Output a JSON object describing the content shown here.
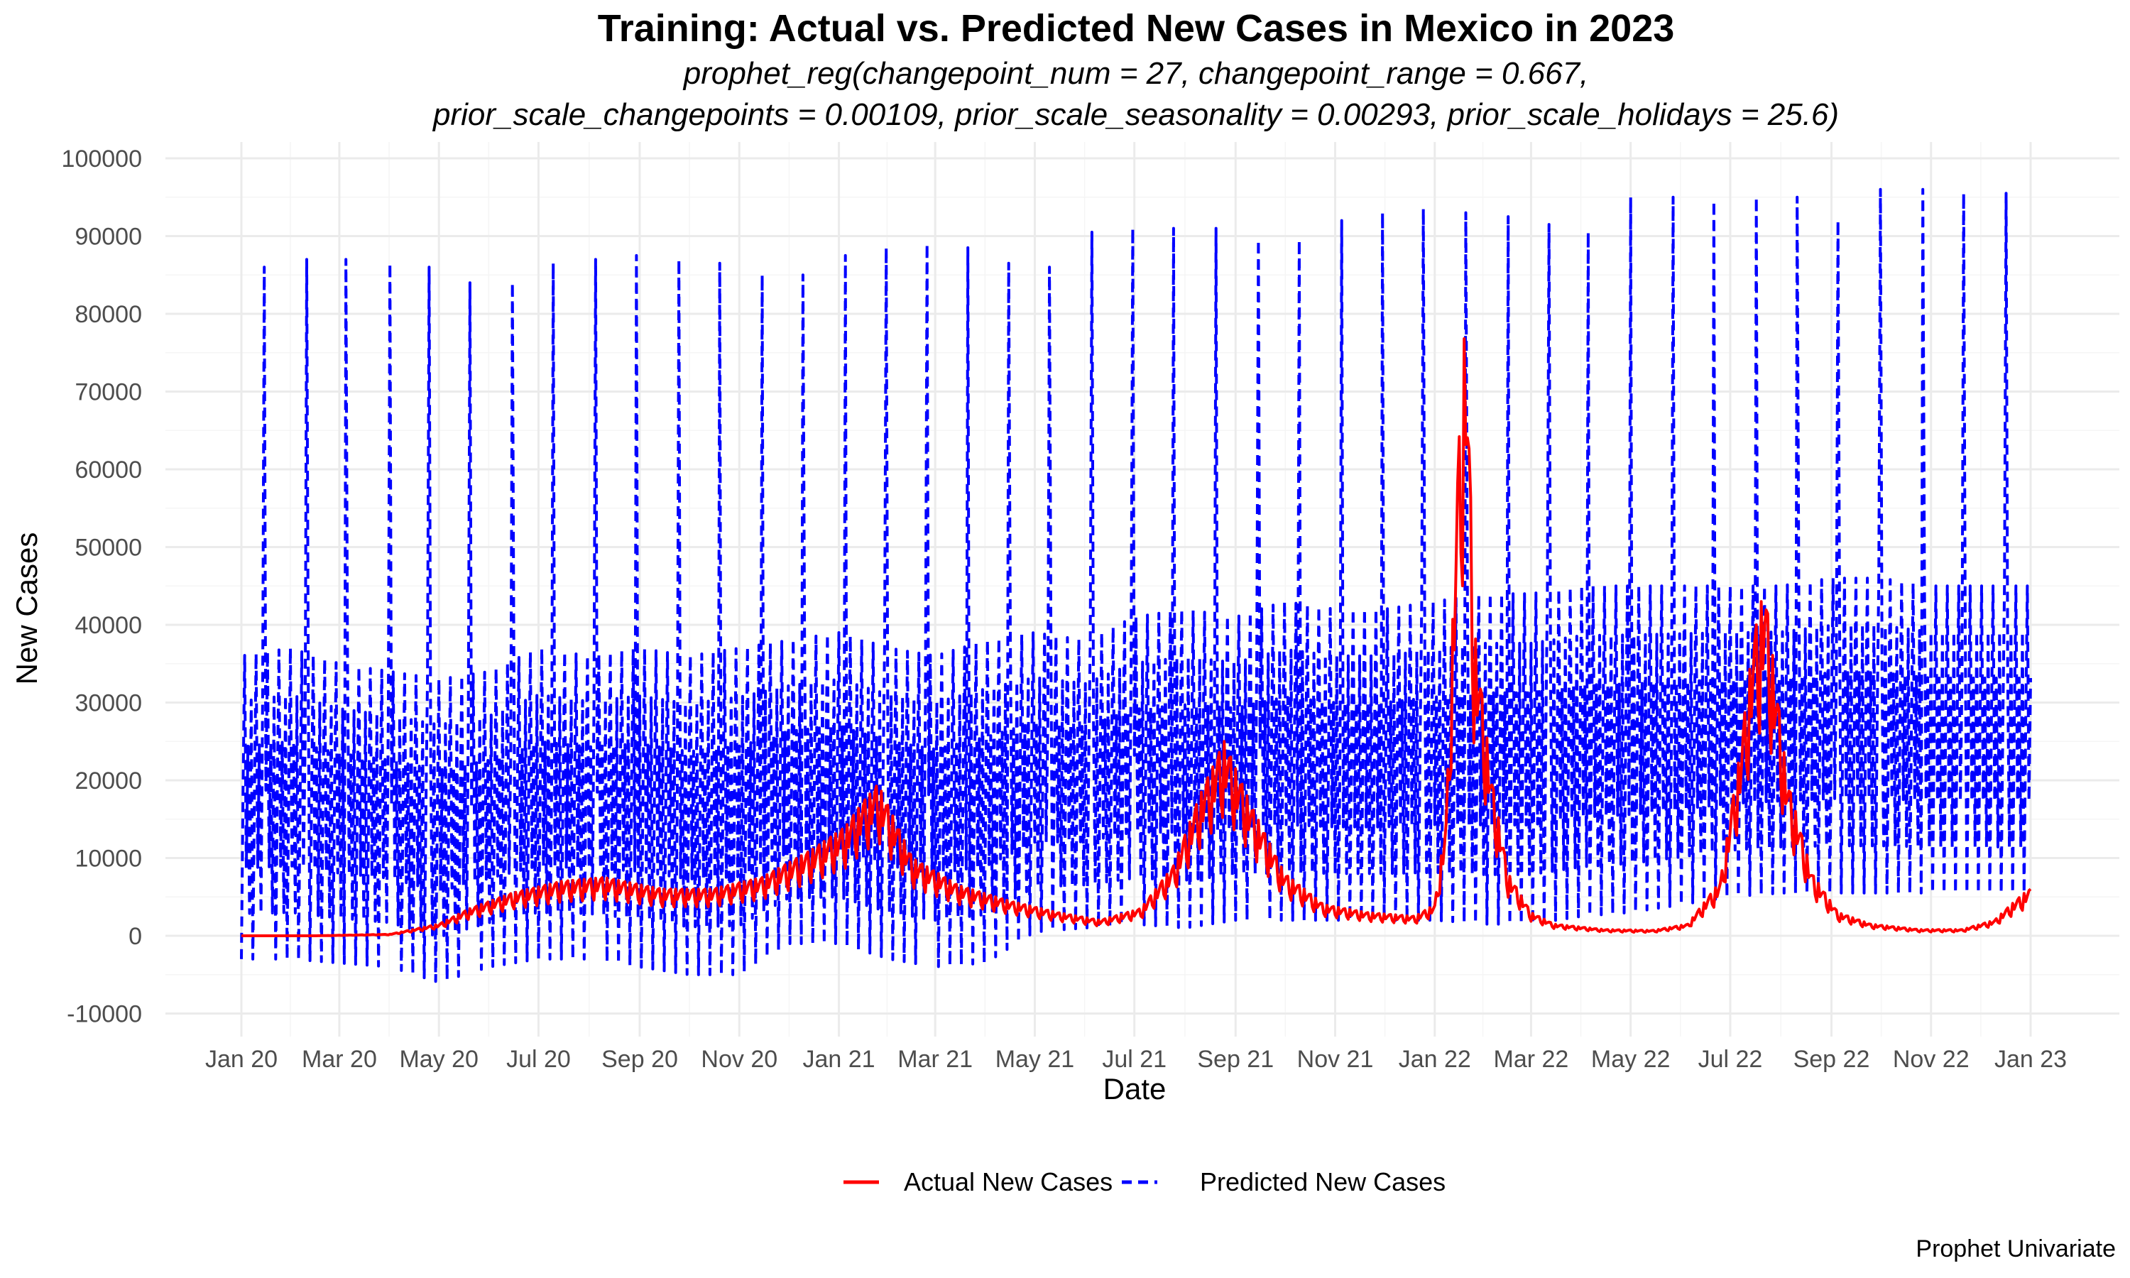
{
  "chart_data": {
    "type": "line",
    "title": "Training: Actual vs. Predicted New Cases in Mexico in 2023",
    "subtitle_lines": [
      "prophet_reg(changepoint_num = 27, changepoint_range = 0.667,",
      "prior_scale_changepoints = 0.00109, prior_scale_seasonality = 0.00293, prior_scale_holidays = 25.6)"
    ],
    "xlabel": "Date",
    "ylabel": "New Cases",
    "caption": "Prophet Univariate",
    "xlim": [
      "2020-01-01",
      "2023-01-01"
    ],
    "ylim": [
      -10000,
      100000
    ],
    "x_ticks": [
      "2020-01-01",
      "2020-03-01",
      "2020-05-01",
      "2020-07-01",
      "2020-09-01",
      "2020-11-01",
      "2021-01-01",
      "2021-03-01",
      "2021-05-01",
      "2021-07-01",
      "2021-09-01",
      "2021-11-01",
      "2022-01-01",
      "2022-03-01",
      "2022-05-01",
      "2022-07-01",
      "2022-09-01",
      "2022-11-01",
      "2023-01-01"
    ],
    "x_tick_labels": [
      "Jan 20",
      "Mar 20",
      "May 20",
      "Jul 20",
      "Sep 20",
      "Nov 20",
      "Jan 21",
      "Mar 21",
      "May 21",
      "Jul 21",
      "Sep 21",
      "Nov 21",
      "Jan 22",
      "Mar 22",
      "May 22",
      "Jul 22",
      "Sep 22",
      "Nov 22",
      "Jan 23"
    ],
    "y_ticks": [
      -10000,
      0,
      10000,
      20000,
      30000,
      40000,
      50000,
      60000,
      70000,
      80000,
      90000,
      100000
    ],
    "y_tick_labels": [
      "-10000",
      "0",
      "10000",
      "20000",
      "30000",
      "40000",
      "50000",
      "60000",
      "70000",
      "80000",
      "90000",
      "100000"
    ],
    "grid": true,
    "legend_position": "bottom",
    "series": [
      {
        "name": "Actual New Cases",
        "color": "#ff0000",
        "line_style": "solid",
        "x": [
          "2020-01-01",
          "2020-02-15",
          "2020-04-01",
          "2020-05-01",
          "2020-05-20",
          "2020-06-15",
          "2020-07-15",
          "2020-08-10",
          "2020-09-15",
          "2020-10-15",
          "2020-11-15",
          "2020-12-15",
          "2021-01-05",
          "2021-01-15",
          "2021-01-25",
          "2021-02-15",
          "2021-03-15",
          "2021-04-15",
          "2021-05-15",
          "2021-06-10",
          "2021-07-05",
          "2021-07-25",
          "2021-08-10",
          "2021-08-25",
          "2021-09-10",
          "2021-10-01",
          "2021-10-25",
          "2021-11-20",
          "2021-12-20",
          "2022-01-01",
          "2022-01-08",
          "2022-01-15",
          "2022-01-20",
          "2022-01-25",
          "2022-02-05",
          "2022-02-15",
          "2022-03-01",
          "2022-03-15",
          "2022-04-15",
          "2022-05-15",
          "2022-06-05",
          "2022-06-25",
          "2022-07-08",
          "2022-07-15",
          "2022-07-22",
          "2022-08-05",
          "2022-08-20",
          "2022-09-05",
          "2022-09-25",
          "2022-10-25",
          "2022-11-20",
          "2022-12-10",
          "2022-12-20",
          "2022-12-31"
        ],
        "values": [
          0,
          0,
          200,
          1500,
          3500,
          5500,
          7000,
          7500,
          6000,
          6000,
          7500,
          11000,
          14000,
          17000,
          19500,
          10000,
          6500,
          4500,
          3000,
          2000,
          3500,
          9000,
          18000,
          25000,
          17000,
          8000,
          4000,
          3000,
          2500,
          4000,
          15000,
          60000,
          81000,
          40000,
          20000,
          8000,
          3000,
          1500,
          800,
          700,
          1500,
          7000,
          25000,
          38000,
          45000,
          20000,
          8000,
          3000,
          1500,
          800,
          800,
          2000,
          4000,
          6000
        ]
      },
      {
        "name": "Predicted New Cases",
        "color": "#0000ff",
        "line_style": "dashed",
        "x": [
          "2020-01-01",
          "2020-01-31",
          "2020-03-01",
          "2020-04-01",
          "2020-05-01",
          "2020-06-01",
          "2020-07-01",
          "2020-08-01",
          "2020-09-01",
          "2020-10-01",
          "2020-11-01",
          "2020-12-01",
          "2021-01-01",
          "2021-02-01",
          "2021-03-01",
          "2021-04-01",
          "2021-05-01",
          "2021-06-01",
          "2021-07-01",
          "2021-08-01",
          "2021-09-01",
          "2021-10-01",
          "2021-11-01",
          "2021-12-01",
          "2022-01-01",
          "2022-02-01",
          "2022-03-01",
          "2022-04-01",
          "2022-05-01",
          "2022-06-01",
          "2022-07-01",
          "2022-08-01",
          "2022-09-01",
          "2022-10-01",
          "2022-11-01",
          "2022-12-01",
          "2022-12-31"
        ],
        "weekly_max": [
          36000,
          37000,
          35000,
          34000,
          33000,
          34000,
          37000,
          36000,
          37000,
          36000,
          37000,
          38000,
          39000,
          37000,
          36000,
          38000,
          39000,
          38000,
          41000,
          42000,
          41000,
          43000,
          42000,
          42000,
          43000,
          44000,
          44000,
          45000,
          45000,
          45000,
          45000,
          45000,
          46000,
          46000,
          45000,
          45000,
          45000
        ],
        "weekly_min": [
          -3000,
          -3000,
          -3500,
          -4000,
          -6000,
          -4000,
          -3000,
          -3000,
          -4000,
          -5000,
          -5000,
          -1000,
          -1000,
          -3000,
          -4000,
          -3500,
          500,
          1000,
          1500,
          1000,
          2000,
          2000,
          2000,
          2000,
          2000,
          1500,
          1500,
          2500,
          3000,
          4000,
          5000,
          5500,
          5500,
          5500,
          5500,
          5500,
          5500
        ],
        "spike_dates": [
          "2020-01-15",
          "2020-02-10",
          "2020-03-05",
          "2020-04-01",
          "2020-04-25",
          "2020-05-20",
          "2020-06-15",
          "2020-07-10",
          "2020-08-05",
          "2020-08-30",
          "2020-09-25",
          "2020-10-20",
          "2020-11-15",
          "2020-12-10",
          "2021-01-05",
          "2021-01-30",
          "2021-02-24",
          "2021-03-21",
          "2021-04-15",
          "2021-05-10",
          "2021-06-05",
          "2021-06-30",
          "2021-07-25",
          "2021-08-20",
          "2021-09-15",
          "2021-10-10",
          "2021-11-05",
          "2021-11-30",
          "2021-12-25",
          "2022-01-20",
          "2022-02-15",
          "2022-03-12",
          "2022-04-05",
          "2022-05-01",
          "2022-05-27",
          "2022-06-21",
          "2022-07-17",
          "2022-08-11",
          "2022-09-05",
          "2022-10-01",
          "2022-10-27",
          "2022-11-21",
          "2022-12-17"
        ],
        "spike_values": [
          86000,
          87000,
          87000,
          86500,
          86000,
          84000,
          84000,
          86500,
          87000,
          87500,
          87000,
          86500,
          85000,
          85000,
          87500,
          88500,
          89000,
          88500,
          86500,
          86000,
          90500,
          91000,
          91000,
          91000,
          89500,
          89500,
          92000,
          93000,
          93500,
          93000,
          92500,
          91500,
          90500,
          95000,
          95000,
          94500,
          95000,
          95000,
          92000,
          96000,
          96000,
          95500,
          95500
        ]
      }
    ]
  }
}
